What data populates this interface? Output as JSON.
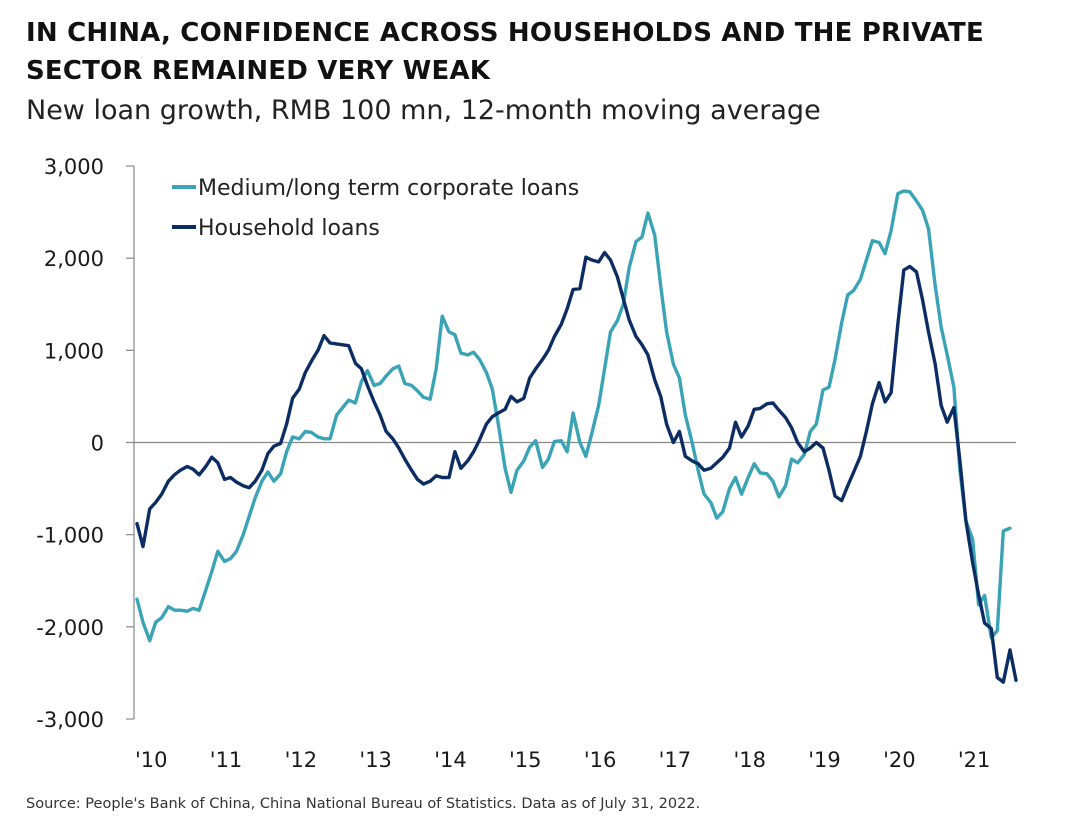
{
  "header": {
    "title": "IN CHINA, CONFIDENCE ACROSS HOUSEHOLDS AND THE PRIVATE SECTOR REMAINED VERY WEAK",
    "subtitle": "New loan growth, RMB 100 mn, 12-month moving average"
  },
  "footer": {
    "source": "Source: People's Bank of China, China National Bureau of Statistics. Data as of July 31, 2022."
  },
  "colors": {
    "corporate": "#3aa3b5",
    "household": "#0c2d63",
    "axis": "#888888"
  },
  "chart_data": {
    "type": "line",
    "title": "IN CHINA, CONFIDENCE ACROSS HOUSEHOLDS AND THE PRIVATE SECTOR REMAINED VERY WEAK",
    "subtitle": "New loan growth, RMB 100 mn, 12-month moving average",
    "xlabel": "",
    "ylabel": "",
    "ylim": [
      -3000,
      3000
    ],
    "xlim": [
      2010.0,
      2021.75
    ],
    "y_ticks": [
      3000,
      2000,
      1000,
      0,
      -1000,
      -2000,
      -3000
    ],
    "y_tick_labels": [
      "3,000",
      "2,000",
      "1,000",
      "0",
      "-1,000",
      "-2,000",
      "-3,000"
    ],
    "x_ticks": [
      2010,
      2011,
      2012,
      2013,
      2014,
      2015,
      2016,
      2017,
      2018,
      2019,
      2020,
      2021
    ],
    "x_tick_labels": [
      "'10",
      "'11",
      "'12",
      "'13",
      "'14",
      "'15",
      "'16",
      "'17",
      "'18",
      "'19",
      "'20",
      "'21"
    ],
    "grid": false,
    "legend_position": "top-left",
    "series": [
      {
        "name": "Medium/long term corporate loans",
        "color": "#3aa3b5",
        "points": [
          [
            2010.0,
            -1700
          ],
          [
            2010.08,
            -1950
          ],
          [
            2010.17,
            -2150
          ],
          [
            2010.25,
            -1950
          ],
          [
            2010.33,
            -1900
          ],
          [
            2010.42,
            -1780
          ],
          [
            2010.5,
            -1820
          ],
          [
            2010.58,
            -1820
          ],
          [
            2010.67,
            -1830
          ],
          [
            2010.75,
            -1800
          ],
          [
            2010.83,
            -1820
          ],
          [
            2010.92,
            -1600
          ],
          [
            2011.0,
            -1400
          ],
          [
            2011.08,
            -1180
          ],
          [
            2011.17,
            -1290
          ],
          [
            2011.25,
            -1260
          ],
          [
            2011.33,
            -1180
          ],
          [
            2011.42,
            -1000
          ],
          [
            2011.5,
            -800
          ],
          [
            2011.58,
            -600
          ],
          [
            2011.67,
            -420
          ],
          [
            2011.75,
            -320
          ],
          [
            2011.83,
            -420
          ],
          [
            2011.92,
            -340
          ],
          [
            2012.0,
            -100
          ],
          [
            2012.08,
            60
          ],
          [
            2012.17,
            40
          ],
          [
            2012.25,
            120
          ],
          [
            2012.33,
            110
          ],
          [
            2012.42,
            60
          ],
          [
            2012.5,
            40
          ],
          [
            2012.58,
            40
          ],
          [
            2012.67,
            300
          ],
          [
            2012.75,
            380
          ],
          [
            2012.83,
            460
          ],
          [
            2012.92,
            430
          ],
          [
            2013.0,
            660
          ],
          [
            2013.08,
            780
          ],
          [
            2013.17,
            620
          ],
          [
            2013.25,
            640
          ],
          [
            2013.33,
            720
          ],
          [
            2013.42,
            800
          ],
          [
            2013.5,
            830
          ],
          [
            2013.58,
            640
          ],
          [
            2013.67,
            620
          ],
          [
            2013.75,
            560
          ],
          [
            2013.83,
            490
          ],
          [
            2013.92,
            470
          ],
          [
            2014.0,
            800
          ],
          [
            2014.08,
            1370
          ],
          [
            2014.17,
            1200
          ],
          [
            2014.25,
            1170
          ],
          [
            2014.33,
            970
          ],
          [
            2014.42,
            950
          ],
          [
            2014.5,
            980
          ],
          [
            2014.58,
            900
          ],
          [
            2014.67,
            760
          ],
          [
            2014.75,
            580
          ],
          [
            2014.83,
            200
          ],
          [
            2014.92,
            -280
          ],
          [
            2015.0,
            -540
          ],
          [
            2015.08,
            -300
          ],
          [
            2015.17,
            -200
          ],
          [
            2015.25,
            -50
          ],
          [
            2015.33,
            20
          ],
          [
            2015.42,
            -270
          ],
          [
            2015.5,
            -180
          ],
          [
            2015.58,
            10
          ],
          [
            2015.67,
            20
          ],
          [
            2015.75,
            -100
          ],
          [
            2015.83,
            320
          ],
          [
            2015.92,
            0
          ],
          [
            2016.0,
            -150
          ],
          [
            2016.08,
            100
          ],
          [
            2016.17,
            400
          ],
          [
            2016.25,
            800
          ],
          [
            2016.33,
            1200
          ],
          [
            2016.42,
            1320
          ],
          [
            2016.5,
            1500
          ],
          [
            2016.58,
            1900
          ],
          [
            2016.67,
            2180
          ],
          [
            2016.75,
            2230
          ],
          [
            2016.83,
            2490
          ],
          [
            2016.92,
            2250
          ],
          [
            2017.0,
            1700
          ],
          [
            2017.08,
            1200
          ],
          [
            2017.17,
            850
          ],
          [
            2017.25,
            700
          ],
          [
            2017.33,
            300
          ],
          [
            2017.42,
            0
          ],
          [
            2017.5,
            -300
          ],
          [
            2017.58,
            -560
          ],
          [
            2017.67,
            -650
          ],
          [
            2017.75,
            -820
          ],
          [
            2017.83,
            -750
          ],
          [
            2017.92,
            -500
          ],
          [
            2018.0,
            -380
          ],
          [
            2018.08,
            -560
          ],
          [
            2018.17,
            -380
          ],
          [
            2018.25,
            -230
          ],
          [
            2018.33,
            -330
          ],
          [
            2018.42,
            -340
          ],
          [
            2018.5,
            -420
          ],
          [
            2018.58,
            -590
          ],
          [
            2018.67,
            -470
          ],
          [
            2018.75,
            -180
          ],
          [
            2018.83,
            -220
          ],
          [
            2018.92,
            -130
          ],
          [
            2019.0,
            120
          ],
          [
            2019.08,
            200
          ],
          [
            2019.17,
            570
          ],
          [
            2019.25,
            600
          ],
          [
            2019.33,
            900
          ],
          [
            2019.42,
            1300
          ],
          [
            2019.5,
            1600
          ],
          [
            2019.58,
            1650
          ],
          [
            2019.67,
            1770
          ],
          [
            2019.75,
            1980
          ],
          [
            2019.83,
            2190
          ],
          [
            2019.92,
            2170
          ],
          [
            2020.0,
            2050
          ],
          [
            2020.08,
            2300
          ],
          [
            2020.17,
            2700
          ],
          [
            2020.25,
            2730
          ],
          [
            2020.33,
            2720
          ],
          [
            2020.42,
            2620
          ],
          [
            2020.5,
            2520
          ],
          [
            2020.58,
            2320
          ],
          [
            2020.67,
            1700
          ],
          [
            2020.75,
            1250
          ],
          [
            2020.83,
            950
          ],
          [
            2020.92,
            600
          ],
          [
            2021.0,
            -300
          ],
          [
            2021.08,
            -850
          ],
          [
            2021.17,
            -1050
          ],
          [
            2021.25,
            -1760
          ],
          [
            2021.33,
            -1660
          ],
          [
            2021.42,
            -2120
          ],
          [
            2021.5,
            -2040
          ],
          [
            2021.58,
            -960
          ],
          [
            2021.67,
            -930
          ]
        ]
      },
      {
        "name": "Household loans",
        "color": "#0c2d63",
        "points": [
          [
            2010.0,
            -880
          ],
          [
            2010.08,
            -1130
          ],
          [
            2010.17,
            -720
          ],
          [
            2010.25,
            -650
          ],
          [
            2010.33,
            -560
          ],
          [
            2010.42,
            -420
          ],
          [
            2010.5,
            -350
          ],
          [
            2010.58,
            -300
          ],
          [
            2010.67,
            -260
          ],
          [
            2010.75,
            -290
          ],
          [
            2010.83,
            -350
          ],
          [
            2010.92,
            -260
          ],
          [
            2011.0,
            -160
          ],
          [
            2011.08,
            -220
          ],
          [
            2011.17,
            -400
          ],
          [
            2011.25,
            -380
          ],
          [
            2011.33,
            -430
          ],
          [
            2011.42,
            -470
          ],
          [
            2011.5,
            -490
          ],
          [
            2011.58,
            -420
          ],
          [
            2011.67,
            -300
          ],
          [
            2011.75,
            -120
          ],
          [
            2011.83,
            -40
          ],
          [
            2011.92,
            -10
          ],
          [
            2012.0,
            200
          ],
          [
            2012.08,
            480
          ],
          [
            2012.17,
            580
          ],
          [
            2012.25,
            760
          ],
          [
            2012.33,
            880
          ],
          [
            2012.42,
            1000
          ],
          [
            2012.5,
            1160
          ],
          [
            2012.58,
            1080
          ],
          [
            2012.67,
            1070
          ],
          [
            2012.75,
            1060
          ],
          [
            2012.83,
            1050
          ],
          [
            2012.92,
            860
          ],
          [
            2013.0,
            800
          ],
          [
            2013.08,
            620
          ],
          [
            2013.17,
            440
          ],
          [
            2013.25,
            300
          ],
          [
            2013.33,
            120
          ],
          [
            2013.42,
            40
          ],
          [
            2013.5,
            -60
          ],
          [
            2013.58,
            -180
          ],
          [
            2013.67,
            -300
          ],
          [
            2013.75,
            -400
          ],
          [
            2013.83,
            -450
          ],
          [
            2013.92,
            -420
          ],
          [
            2014.0,
            -360
          ],
          [
            2014.08,
            -380
          ],
          [
            2014.17,
            -380
          ],
          [
            2014.25,
            -100
          ],
          [
            2014.33,
            -280
          ],
          [
            2014.42,
            -200
          ],
          [
            2014.5,
            -100
          ],
          [
            2014.58,
            30
          ],
          [
            2014.67,
            200
          ],
          [
            2014.75,
            280
          ],
          [
            2014.83,
            320
          ],
          [
            2014.92,
            360
          ],
          [
            2015.0,
            500
          ],
          [
            2015.08,
            440
          ],
          [
            2015.17,
            480
          ],
          [
            2015.25,
            700
          ],
          [
            2015.33,
            800
          ],
          [
            2015.42,
            900
          ],
          [
            2015.5,
            1000
          ],
          [
            2015.58,
            1150
          ],
          [
            2015.67,
            1280
          ],
          [
            2015.75,
            1450
          ],
          [
            2015.83,
            1660
          ],
          [
            2015.92,
            1670
          ],
          [
            2016.0,
            2010
          ],
          [
            2016.08,
            1980
          ],
          [
            2016.17,
            1960
          ],
          [
            2016.25,
            2060
          ],
          [
            2016.33,
            1980
          ],
          [
            2016.42,
            1800
          ],
          [
            2016.5,
            1560
          ],
          [
            2016.58,
            1330
          ],
          [
            2016.67,
            1150
          ],
          [
            2016.75,
            1060
          ],
          [
            2016.83,
            950
          ],
          [
            2016.92,
            680
          ],
          [
            2017.0,
            500
          ],
          [
            2017.08,
            200
          ],
          [
            2017.17,
            0
          ],
          [
            2017.25,
            120
          ],
          [
            2017.33,
            -150
          ],
          [
            2017.42,
            -200
          ],
          [
            2017.5,
            -230
          ],
          [
            2017.58,
            -300
          ],
          [
            2017.67,
            -280
          ],
          [
            2017.75,
            -220
          ],
          [
            2017.83,
            -160
          ],
          [
            2017.92,
            -60
          ],
          [
            2018.0,
            220
          ],
          [
            2018.08,
            60
          ],
          [
            2018.17,
            180
          ],
          [
            2018.25,
            360
          ],
          [
            2018.33,
            370
          ],
          [
            2018.42,
            420
          ],
          [
            2018.5,
            430
          ],
          [
            2018.58,
            350
          ],
          [
            2018.67,
            270
          ],
          [
            2018.75,
            160
          ],
          [
            2018.83,
            0
          ],
          [
            2018.92,
            -100
          ],
          [
            2019.0,
            -60
          ],
          [
            2019.08,
            0
          ],
          [
            2019.17,
            -60
          ],
          [
            2019.25,
            -300
          ],
          [
            2019.33,
            -580
          ],
          [
            2019.42,
            -630
          ],
          [
            2019.5,
            -470
          ],
          [
            2019.58,
            -320
          ],
          [
            2019.67,
            -150
          ],
          [
            2019.75,
            120
          ],
          [
            2019.83,
            420
          ],
          [
            2019.92,
            650
          ],
          [
            2020.0,
            440
          ],
          [
            2020.08,
            540
          ],
          [
            2020.17,
            1280
          ],
          [
            2020.25,
            1870
          ],
          [
            2020.33,
            1910
          ],
          [
            2020.42,
            1850
          ],
          [
            2020.5,
            1550
          ],
          [
            2020.58,
            1200
          ],
          [
            2020.67,
            850
          ],
          [
            2020.75,
            400
          ],
          [
            2020.83,
            220
          ],
          [
            2020.92,
            380
          ],
          [
            2021.0,
            -200
          ],
          [
            2021.08,
            -850
          ],
          [
            2021.17,
            -1300
          ],
          [
            2021.25,
            -1650
          ],
          [
            2021.33,
            -1960
          ],
          [
            2021.42,
            -2020
          ],
          [
            2021.5,
            -2550
          ],
          [
            2021.58,
            -2600
          ],
          [
            2021.67,
            -2250
          ],
          [
            2021.75,
            -2580
          ]
        ]
      }
    ]
  }
}
